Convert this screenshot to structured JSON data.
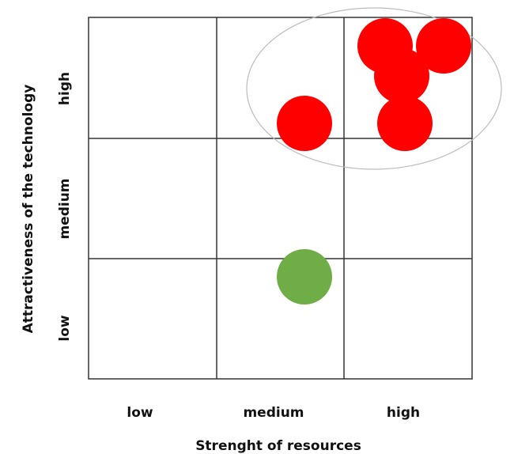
{
  "x_axis": {
    "title": "Strenght of resources",
    "levels": [
      "low",
      "medium",
      "high"
    ]
  },
  "y_axis": {
    "title": "Attractiveness  of the technology",
    "levels": [
      "low",
      "medium",
      "high"
    ]
  },
  "colors": {
    "grid_line": "#333333",
    "red_circle": "#ff0000",
    "green_circle": "#6fad47",
    "highlight_ellipse": "#bbbbbb"
  },
  "technologies": [
    {
      "color": "red",
      "x_level": "high",
      "y_level": "high"
    },
    {
      "color": "red",
      "x_level": "high",
      "y_level": "high"
    },
    {
      "color": "red",
      "x_level": "high",
      "y_level": "high"
    },
    {
      "color": "red",
      "x_level": "high",
      "y_level": "high"
    },
    {
      "color": "red",
      "x_level": "medium",
      "y_level": "high"
    },
    {
      "color": "green",
      "x_level": "medium",
      "y_level": "low"
    }
  ],
  "highlight_group": {
    "shape": "ellipse",
    "encloses": "high attractiveness technologies"
  }
}
